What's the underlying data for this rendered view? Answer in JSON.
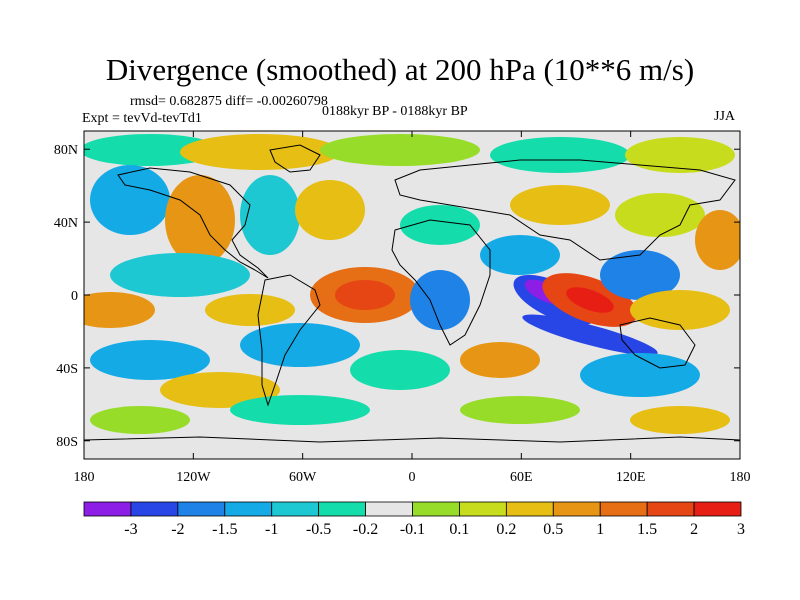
{
  "title": "Divergence (smoothed) at 200 hPa (10**6 m/s)",
  "stats": "rmsd= 0.682875 diff= -0.00260798",
  "experiment": "Expt = tevVd-tevTd1",
  "period": "0188kyr BP - 0188kyr BP",
  "season": "JJA",
  "map": {
    "lat_ticks": [
      "80N",
      "40N",
      "0",
      "40S",
      "80S"
    ],
    "lon_ticks": [
      "180",
      "120W",
      "60W",
      "0",
      "60E",
      "120E",
      "180"
    ]
  },
  "colorbar": {
    "colors": [
      "#8c1ee6",
      "#2846e6",
      "#1e82e6",
      "#14aae6",
      "#1ec8d2",
      "#14dcaa",
      "#e6e6e6",
      "#96dc28",
      "#c8dc1e",
      "#e6be14",
      "#e69614",
      "#e66e14",
      "#e64614",
      "#e61e14"
    ],
    "labels": [
      "-3",
      "-2",
      "-1.5",
      "-1",
      "-0.5",
      "-0.2",
      "-0.1",
      "0.1",
      "0.2",
      "0.5",
      "1",
      "1.5",
      "2",
      "3"
    ]
  }
}
